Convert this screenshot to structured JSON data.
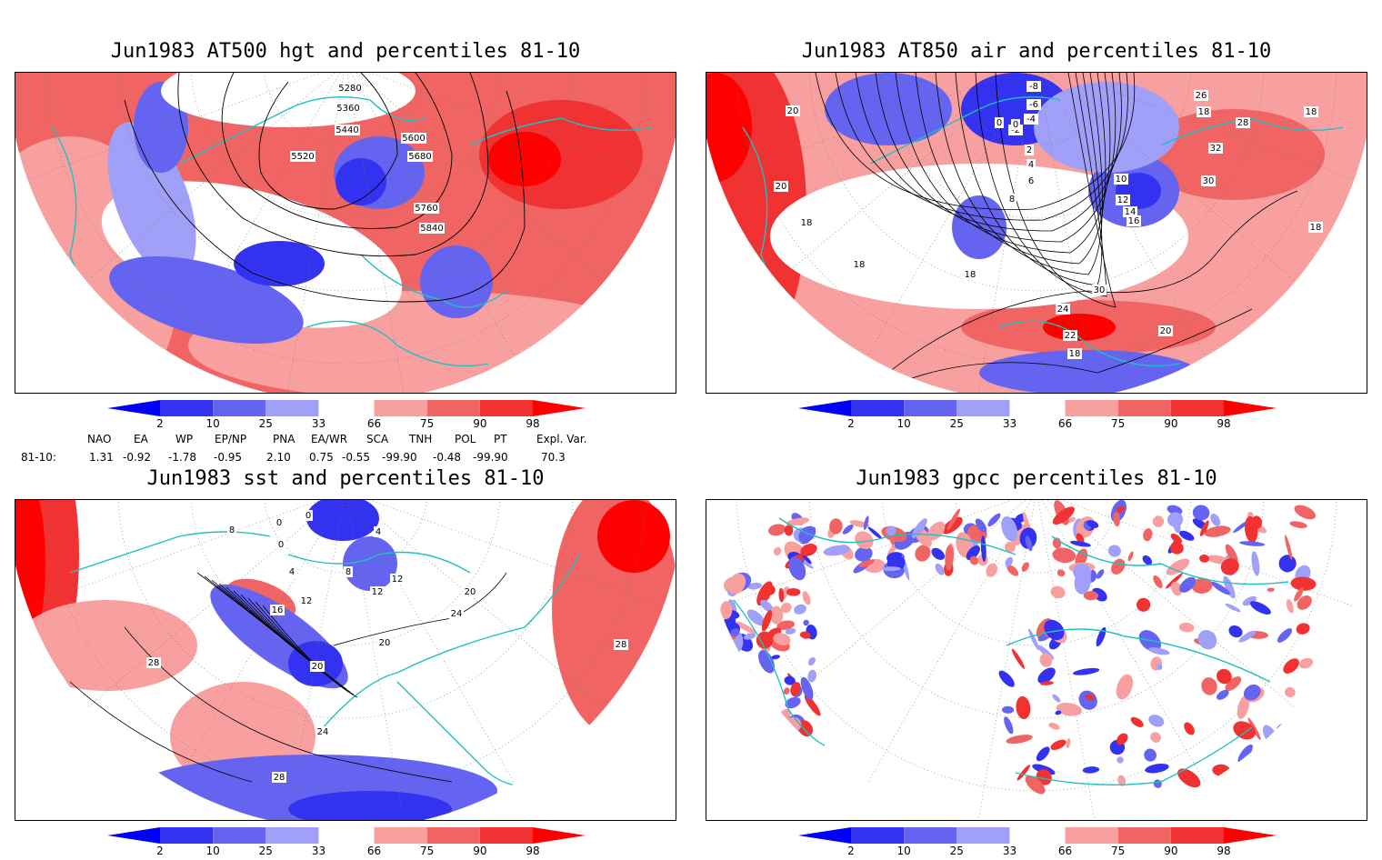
{
  "panels": [
    {
      "id": "hgt",
      "title": "Jun1983 AT500 hgt and percentiles 81-10",
      "contour_labels": [
        "5280",
        "5360",
        "5440",
        "5520",
        "5600",
        "5680",
        "5760",
        "5840"
      ]
    },
    {
      "id": "air",
      "title": "Jun1983 AT850 air and percentiles 81-10",
      "contour_labels": [
        "-8",
        "-6",
        "-4",
        "-2",
        "0",
        "0",
        "2",
        "4",
        "6",
        "8",
        "10",
        "12",
        "14",
        "16",
        "18",
        "18",
        "18",
        "18",
        "18",
        "18",
        "18",
        "20",
        "20",
        "20",
        "22",
        "24",
        "26",
        "28",
        "30",
        "30",
        "32"
      ]
    },
    {
      "id": "sst",
      "title": "Jun1983 sst and percentiles 81-10",
      "contour_labels": [
        "0",
        "0",
        "0",
        "4",
        "4",
        "8",
        "8",
        "12",
        "12",
        "12",
        "16",
        "20",
        "20",
        "20",
        "24",
        "24",
        "28",
        "28",
        "28"
      ]
    },
    {
      "id": "gpcc",
      "title": "Jun1983 gpcc percentiles 81-10",
      "contour_labels": []
    }
  ],
  "colorbar": {
    "labels": [
      "2",
      "10",
      "25",
      "33",
      "66",
      "75",
      "90",
      "98"
    ],
    "colors": {
      "below_2": "#0000ff",
      "2_10": "#3232f0",
      "10_25": "#6464f0",
      "25_33": "#a0a0f8",
      "33_66": "#ffffff",
      "66_75": "#f8a0a0",
      "75_90": "#f06464",
      "90_98": "#f03232",
      "above_98": "#ff0000"
    }
  },
  "teleconnections": {
    "headers": [
      "NAO",
      "EA",
      "WP",
      "EP/NP",
      "PNA",
      "EA/WR",
      "SCA",
      "TNH",
      "POL",
      "PT",
      "Expl. Var."
    ],
    "row_label": "81-10:",
    "values": [
      "1.31",
      "-0.92",
      "-1.78",
      "-0.95",
      "2.10",
      "0.75",
      "-0.55",
      "-99.90",
      "-0.48",
      "-99.90",
      "70.3"
    ]
  },
  "colors": {
    "coastline": "#20c0c0",
    "contour": "#000000",
    "frame": "#000000"
  }
}
